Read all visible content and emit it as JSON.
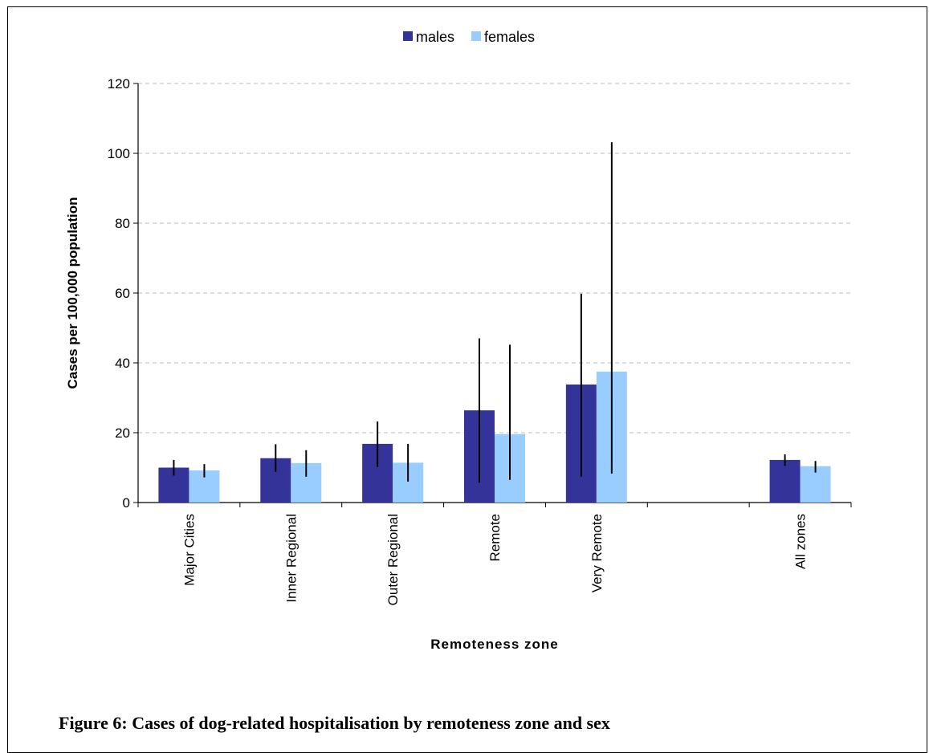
{
  "caption": "Figure 6: Cases of dog-related hospitalisation by remoteness zone and sex",
  "chart_data": {
    "type": "bar",
    "title": "",
    "xlabel": "Remoteness zone",
    "ylabel": "Cases per 100,000 population",
    "ylim": [
      0,
      120
    ],
    "yticks": [
      "0",
      "20",
      "40",
      "60",
      "80",
      "100",
      "120"
    ],
    "grid": "horizontal dashed",
    "legend_position": "top-center",
    "categories": [
      "Major Cities",
      "Inner Regional",
      "Outer Regional",
      "Remote",
      "Very Remote",
      "",
      "All zones"
    ],
    "series": [
      {
        "name": "males",
        "color": "#333399",
        "values": [
          10,
          12.7,
          16.8,
          26.4,
          33.8,
          null,
          12.2
        ],
        "error_low": [
          7.7,
          8.8,
          10.2,
          5.7,
          7.4,
          null,
          10.5
        ],
        "error_high": [
          12.2,
          16.7,
          23.2,
          47,
          59.8,
          null,
          13.8
        ]
      },
      {
        "name": "females",
        "color": "#99CCFF",
        "values": [
          9.2,
          11.3,
          11.4,
          19.6,
          37.5,
          null,
          10.4
        ],
        "error_low": [
          7.2,
          7.4,
          6,
          6.5,
          8.3,
          null,
          8.6
        ],
        "error_high": [
          11,
          15,
          16.8,
          45.2,
          103.2,
          null,
          11.9
        ]
      }
    ]
  }
}
